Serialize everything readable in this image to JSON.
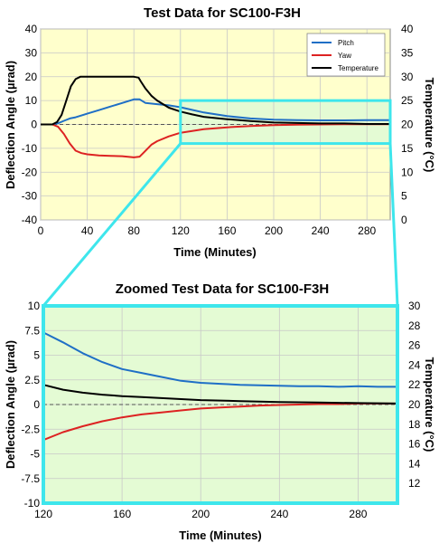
{
  "chart_data": [
    {
      "type": "line",
      "title": "Test Data for SC100-F3H",
      "xlabel": "Time (Minutes)",
      "ylabel": "Deflection Angle (µrad)",
      "y2label": "Temperature (°C)",
      "xlim": [
        0,
        300
      ],
      "ylim": [
        -40,
        40
      ],
      "y2lim": [
        0,
        40
      ],
      "xticks": [
        0,
        40,
        80,
        120,
        160,
        200,
        240,
        280
      ],
      "yticks": [
        -40,
        -30,
        -20,
        -10,
        0,
        10,
        20,
        30,
        40
      ],
      "y2ticks": [
        0,
        5,
        10,
        15,
        20,
        25,
        30,
        35,
        40
      ],
      "background": "#ffffcc",
      "zoom_box": {
        "x": [
          120,
          300
        ],
        "y": [
          -8,
          10
        ]
      },
      "zoom_fill": "#e4fbd4",
      "legend": {
        "position": "top-right"
      },
      "series": [
        {
          "name": "Pitch",
          "axis": "left",
          "color": "#1f6fc6",
          "x": [
            0,
            10,
            15,
            20,
            25,
            30,
            40,
            50,
            60,
            70,
            80,
            85,
            90,
            100,
            110,
            120,
            140,
            160,
            180,
            200,
            220,
            240,
            260,
            280,
            300
          ],
          "y": [
            0,
            0,
            0.5,
            1.5,
            2.5,
            3,
            4.5,
            6,
            7.5,
            9,
            10.5,
            10.5,
            9,
            8.5,
            8,
            7.2,
            5,
            3.5,
            2.5,
            2,
            1.8,
            1.7,
            1.7,
            1.8,
            1.8
          ]
        },
        {
          "name": "Yaw",
          "axis": "left",
          "color": "#dd2222",
          "x": [
            0,
            10,
            15,
            20,
            25,
            30,
            35,
            40,
            50,
            60,
            70,
            80,
            85,
            88,
            95,
            100,
            110,
            120,
            140,
            160,
            180,
            200,
            220,
            240,
            260,
            280,
            300
          ],
          "y": [
            0,
            0,
            -1,
            -4,
            -8,
            -11,
            -12,
            -12.5,
            -13,
            -13.2,
            -13.3,
            -13.8,
            -13.5,
            -12,
            -8.5,
            -7,
            -5,
            -3.5,
            -2,
            -1.2,
            -0.7,
            -0.3,
            -0.1,
            0,
            0.1,
            0.1,
            0.1
          ]
        },
        {
          "name": "Temperature",
          "axis": "right",
          "color": "#000000",
          "x": [
            0,
            10,
            14,
            18,
            22,
            26,
            30,
            34,
            40,
            50,
            60,
            70,
            80,
            84,
            86,
            90,
            95,
            100,
            110,
            120,
            130,
            140,
            160,
            180,
            200,
            220,
            240,
            260,
            280,
            300
          ],
          "y": [
            20,
            20,
            20.5,
            22,
            25,
            28,
            29.5,
            30,
            30,
            30,
            30,
            30,
            30,
            29.8,
            29,
            27.5,
            26,
            25,
            23.5,
            22.7,
            22.1,
            21.6,
            21.1,
            20.7,
            20.4,
            20.3,
            20.2,
            20.2,
            20.1,
            20.1
          ]
        }
      ]
    },
    {
      "type": "line",
      "title": "Zoomed Test Data for SC100-F3H",
      "xlabel": "Time (Minutes)",
      "ylabel": "Deflection Angle (µrad)",
      "y2label": "Temperature (°C)",
      "xlim": [
        120,
        300
      ],
      "ylim": [
        -10,
        10
      ],
      "y2lim": [
        10,
        30
      ],
      "xticks": [
        120,
        160,
        200,
        240,
        280
      ],
      "yticks": [
        -10,
        -7.5,
        -5,
        -2.5,
        0,
        2.5,
        5,
        7.5,
        10
      ],
      "y2ticks": [
        12,
        14,
        16,
        18,
        20,
        22,
        24,
        26,
        28,
        30
      ],
      "background": "#e4fbd4",
      "border": "#3ee6ec",
      "series": [
        {
          "name": "Pitch",
          "axis": "left",
          "color": "#1f6fc6",
          "x": [
            120,
            130,
            140,
            150,
            160,
            170,
            180,
            190,
            200,
            210,
            220,
            230,
            240,
            250,
            260,
            270,
            280,
            290,
            300
          ],
          "y": [
            7.3,
            6.3,
            5.2,
            4.3,
            3.6,
            3.2,
            2.8,
            2.4,
            2.2,
            2.1,
            2.0,
            1.95,
            1.9,
            1.85,
            1.85,
            1.8,
            1.85,
            1.8,
            1.8
          ]
        },
        {
          "name": "Yaw",
          "axis": "left",
          "color": "#dd2222",
          "x": [
            120,
            130,
            140,
            150,
            160,
            170,
            180,
            190,
            200,
            210,
            220,
            230,
            240,
            250,
            260,
            270,
            280,
            290,
            300
          ],
          "y": [
            -3.6,
            -2.8,
            -2.2,
            -1.7,
            -1.3,
            -1.0,
            -0.8,
            -0.6,
            -0.4,
            -0.3,
            -0.2,
            -0.1,
            -0.05,
            0,
            0.05,
            0.05,
            0.1,
            0.1,
            0.1
          ]
        },
        {
          "name": "Temperature",
          "axis": "right",
          "color": "#000000",
          "x": [
            120,
            130,
            140,
            150,
            160,
            170,
            180,
            190,
            200,
            220,
            240,
            260,
            280,
            300
          ],
          "y": [
            22.0,
            21.5,
            21.2,
            21.0,
            20.85,
            20.75,
            20.65,
            20.55,
            20.45,
            20.35,
            20.25,
            20.2,
            20.15,
            20.1
          ]
        }
      ]
    }
  ]
}
